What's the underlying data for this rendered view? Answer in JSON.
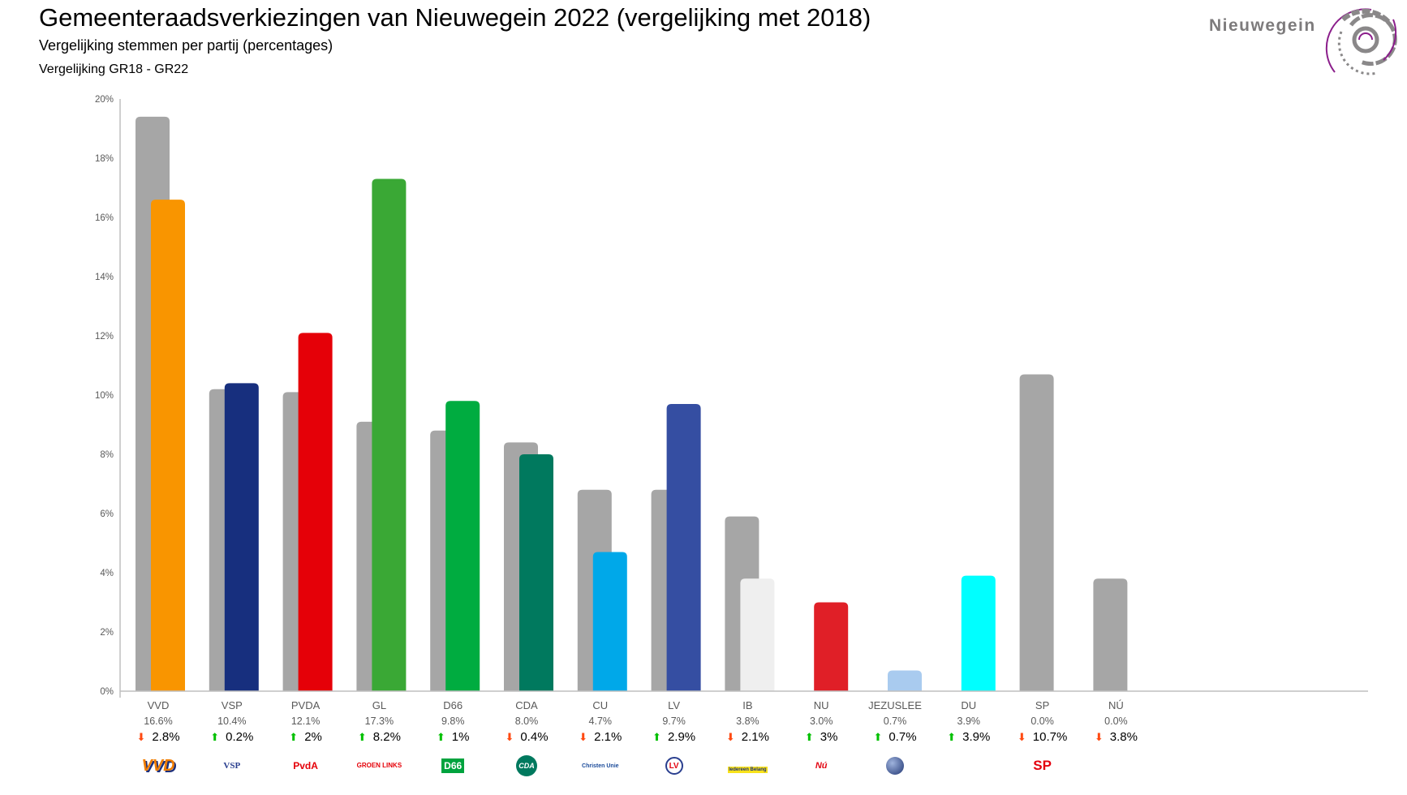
{
  "header": {
    "title": "Gemeenteraadsverkiezingen van Nieuwegein 2022 (vergelijking met 2018)",
    "subtitle": "Vergelijking stemmen per partij (percentages)",
    "comparison": "Vergelijking GR18 - GR22",
    "brand": "Nieuwegein"
  },
  "colors": {
    "gr18": "#a6a6a6",
    "up": "#00c000",
    "down": "#ff4a12",
    "axis": "#bfbfbf"
  },
  "chart_data": {
    "type": "bar",
    "title": "Vergelijking stemmen per partij (percentages)",
    "ylabel": "",
    "xlabel": "",
    "ylim": [
      0,
      20
    ],
    "yticks": [
      "0%",
      "2%",
      "4%",
      "6%",
      "8%",
      "10%",
      "12%",
      "14%",
      "16%",
      "18%",
      "20%"
    ],
    "grid": false,
    "categories": [
      "VVD",
      "VSP",
      "PVDA",
      "GL",
      "D66",
      "CDA",
      "CU",
      "LV",
      "IB",
      "NU",
      "JEZUSLEE",
      "DU",
      "SP",
      "NÚ"
    ],
    "series": [
      {
        "name": "GR18",
        "values": [
          19.4,
          10.2,
          10.1,
          9.1,
          8.8,
          8.4,
          6.8,
          6.8,
          5.9,
          0,
          0,
          0,
          10.7,
          3.8
        ]
      },
      {
        "name": "GR22",
        "values": [
          16.6,
          10.4,
          12.1,
          17.3,
          9.8,
          8.0,
          4.7,
          9.7,
          3.8,
          3.0,
          0.7,
          3.9,
          0.0,
          0.0
        ]
      }
    ],
    "party_colors": [
      "#f99500",
      "#172f7e",
      "#e50008",
      "#3aa835",
      "#00ac40",
      "#00795e",
      "#00a8e9",
      "#354ea2",
      "#efefef",
      "#e01f27",
      "#a9cbef",
      "#00ffff",
      "#e4000e",
      "#a6a6a6"
    ],
    "value_labels": [
      "16.6%",
      "10.4%",
      "12.1%",
      "17.3%",
      "9.8%",
      "8.0%",
      "4.7%",
      "9.7%",
      "3.8%",
      "3.0%",
      "0.7%",
      "3.9%",
      "0.0%",
      "0.0%"
    ],
    "changes": [
      {
        "dir": "down",
        "text": "2.8%"
      },
      {
        "dir": "up",
        "text": "0.2%"
      },
      {
        "dir": "up",
        "text": "2%"
      },
      {
        "dir": "up",
        "text": "8.2%"
      },
      {
        "dir": "up",
        "text": "1%"
      },
      {
        "dir": "down",
        "text": "0.4%"
      },
      {
        "dir": "down",
        "text": "2.1%"
      },
      {
        "dir": "up",
        "text": "2.9%"
      },
      {
        "dir": "down",
        "text": "2.1%"
      },
      {
        "dir": "up",
        "text": "3%"
      },
      {
        "dir": "up",
        "text": "0.7%"
      },
      {
        "dir": "up",
        "text": "3.9%"
      },
      {
        "dir": "down",
        "text": "10.7%"
      },
      {
        "dir": "down",
        "text": "3.8%"
      }
    ],
    "logos": [
      "VVD",
      "VSP",
      "PvdA",
      "GROEN LINKS",
      "D66",
      "CDA",
      "ChristenUnie",
      "LV",
      "Iedereen Belang",
      "Nú",
      "",
      "",
      "SP",
      ""
    ]
  }
}
